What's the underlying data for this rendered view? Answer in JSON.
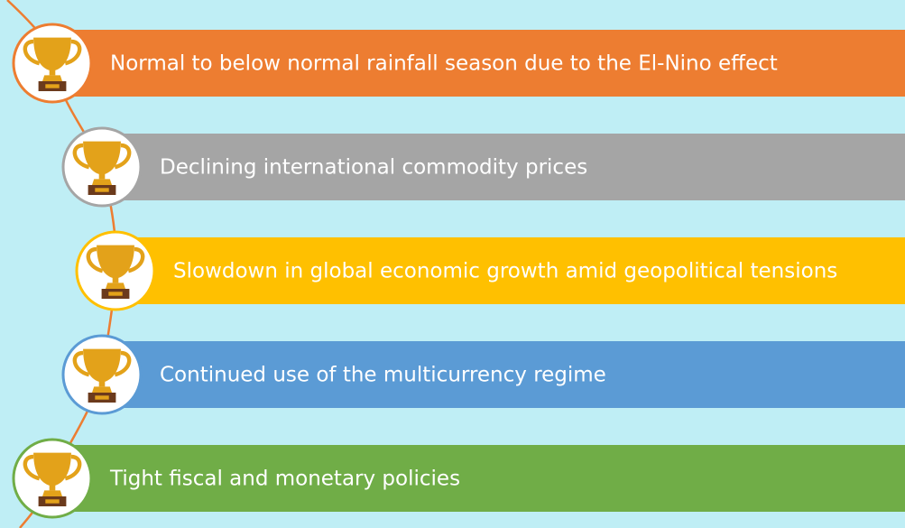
{
  "items": [
    {
      "text": "Normal to below normal rainfall season due to the El-Nino effect",
      "color": "#ed7d31"
    },
    {
      "text": "Declining international commodity prices",
      "color": "#a5a5a5"
    },
    {
      "text": "Slowdown in global economic growth amid geopolitical tensions",
      "color": "#ffc000"
    },
    {
      "text": "Continued use of the multicurrency regime",
      "color": "#5b9bd5"
    },
    {
      "text": "Tight fiscal and monetary policies",
      "color": "#70ad47"
    }
  ]
}
